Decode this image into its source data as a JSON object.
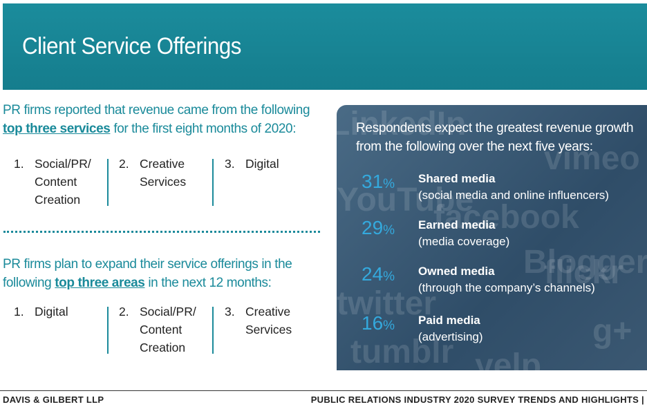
{
  "header": {
    "title": "Client Service Offerings"
  },
  "section_1": {
    "intro": "PR firms reported that revenue came from the following",
    "emphasis": "top three services",
    "rest": "for the first eight months of 2020:",
    "items": [
      {
        "number": "1.",
        "text": "Social/PR/ Content Creation"
      },
      {
        "number": "2.",
        "text": "Creative Services"
      },
      {
        "number": "3.",
        "text": "Digital"
      }
    ]
  },
  "section_2": {
    "intro": "PR  firms plan to expand their service offerings in the following",
    "emphasis": "top three areas",
    "rest": "in the next 12 months:",
    "items": [
      {
        "number": "1.",
        "text": "Digital"
      },
      {
        "number": "2.",
        "text": "Social/PR/ Content Creation"
      },
      {
        "number": "3.",
        "text": "Creative Services"
      }
    ]
  },
  "panel": {
    "heading": "Respondents expect the greatest revenue growth from the following over the next five years:",
    "background_logos": [
      "LinkedIn",
      "YouTube",
      "facebook",
      "vimeo",
      "flickr",
      "twitter",
      "tumblr",
      "Blogger",
      "yelp",
      "g+"
    ],
    "stats": [
      {
        "value": "31",
        "unit": "%",
        "label": "Shared media",
        "detail": "(social media and online influencers)"
      },
      {
        "value": "29",
        "unit": "%",
        "label": "Earned media",
        "detail": "(media coverage)"
      },
      {
        "value": "24",
        "unit": "%",
        "label": "Owned media",
        "detail": "(through the company’s channels)"
      },
      {
        "value": "16",
        "unit": "%",
        "label": "Paid media",
        "detail": "(advertising)"
      }
    ]
  },
  "footer": {
    "left": "DAVIS & GILBERT LLP",
    "right": "PUBLIC RELATIONS INDUSTRY 2020 SURVEY TRENDS AND HIGHLIGHTS |"
  }
}
